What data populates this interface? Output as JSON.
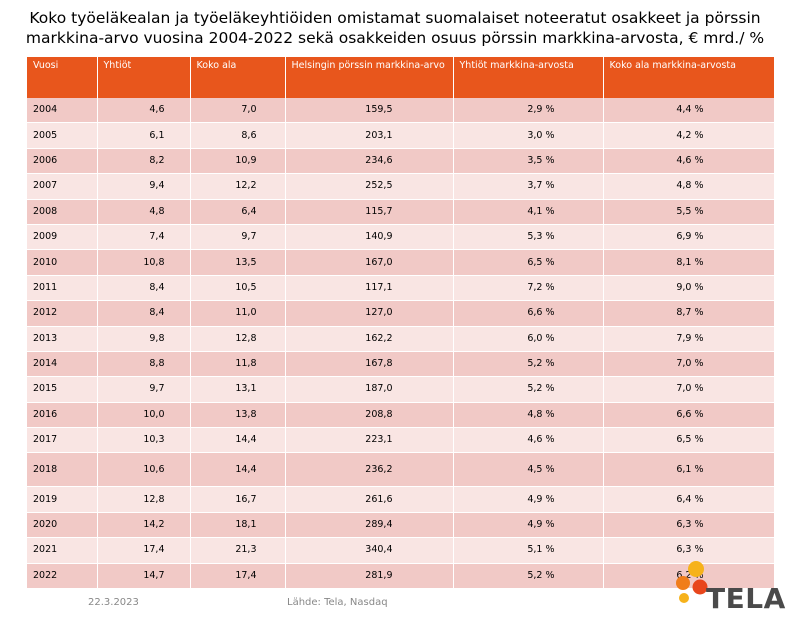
{
  "title": {
    "line1": "Koko työeläkealan ja työeläkeyhtiöiden omistamat suomalaiset noteeratut osakkeet ja pörssin",
    "line2": "markkina-arvo vuosina 2004-2022 sekä osakkeiden osuus pörssin markkina-arvosta, € mrd./ %"
  },
  "table": {
    "headers": [
      "Vuosi",
      "Yhtiöt",
      "Koko ala",
      "Helsingin pörssin markkina-arvo",
      "Yhtiöt markkina-arvosta",
      "Koko ala markkina-arvosta"
    ],
    "rows": [
      [
        "2004",
        "4,6",
        "7,0",
        "159,5",
        "2,9 %",
        "4,4 %"
      ],
      [
        "2005",
        "6,1",
        "8,6",
        "203,1",
        "3,0 %",
        "4,2 %"
      ],
      [
        "2006",
        "8,2",
        "10,9",
        "234,6",
        "3,5 %",
        "4,6 %"
      ],
      [
        "2007",
        "9,4",
        "12,2",
        "252,5",
        "3,7 %",
        "4,8 %"
      ],
      [
        "2008",
        "4,8",
        "6,4",
        "115,7",
        "4,1 %",
        "5,5 %"
      ],
      [
        "2009",
        "7,4",
        "9,7",
        "140,9",
        "5,3 %",
        "6,9 %"
      ],
      [
        "2010",
        "10,8",
        "13,5",
        "167,0",
        "6,5 %",
        "8,1 %"
      ],
      [
        "2011",
        "8,4",
        "10,5",
        "117,1",
        "7,2 %",
        "9,0 %"
      ],
      [
        "2012",
        "8,4",
        "11,0",
        "127,0",
        "6,6 %",
        "8,7 %"
      ],
      [
        "2013",
        "9,8",
        "12,8",
        "162,2",
        "6,0 %",
        "7,9 %"
      ],
      [
        "2014",
        "8,8",
        "11,8",
        "167,8",
        "5,2 %",
        "7,0 %"
      ],
      [
        "2015",
        "9,7",
        "13,1",
        "187,0",
        "5,2 %",
        "7,0 %"
      ],
      [
        "2016",
        "10,0",
        "13,8",
        "208,8",
        "4,8 %",
        "6,6 %"
      ],
      [
        "2017",
        "10,3",
        "14,4",
        "223,1",
        "4,6 %",
        "6,5 %"
      ],
      [
        "2018",
        "10,6",
        "14,4",
        "236,2",
        "4,5 %",
        "6,1 %"
      ],
      [
        "2019",
        "12,8",
        "16,7",
        "261,6",
        "4,9 %",
        "6,4 %"
      ],
      [
        "2020",
        "14,2",
        "18,1",
        "289,4",
        "4,9 %",
        "6,3 %"
      ],
      [
        "2021",
        "17,4",
        "21,3",
        "340,4",
        "5,1 %",
        "6,3 %"
      ],
      [
        "2022",
        "14,7",
        "17,4",
        "281,9",
        "5,2 %",
        "6,2 %"
      ]
    ]
  },
  "footer": {
    "date": "22.3.2023",
    "source": "Lähde: Tela, Nasdaq"
  },
  "logo": {
    "text": "TELA",
    "colors": {
      "orange": "#f07d1a",
      "yellow": "#f6b21b",
      "red": "#e8461c",
      "text": "#4a4a4a"
    }
  },
  "colors": {
    "header_bg": "#e8561c",
    "row_dark": "#f1c9c6",
    "row_light": "#f9e5e3"
  }
}
